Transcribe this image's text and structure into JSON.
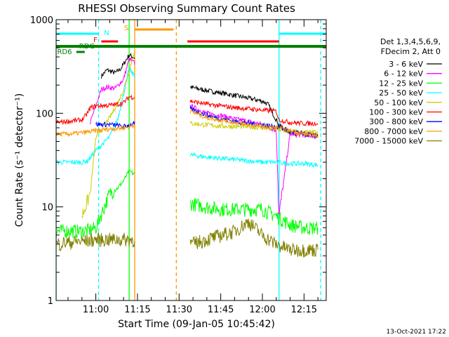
{
  "chart_data": {
    "type": "line",
    "title": "RHESSI Observing Summary Count Rates",
    "xlabel": "Start Time (09-Jan-05 10:45:42)",
    "ylabel": "Count Rate (s⁻¹ detector⁻¹)",
    "y_scale": "log",
    "ylim": [
      1,
      1000
    ],
    "xlim": [
      "10:45:42",
      "12:23:00"
    ],
    "x_ticks": [
      "11:00",
      "11:15",
      "11:30",
      "11:45",
      "12:00",
      "12:15"
    ],
    "y_ticks": [
      "1",
      "10",
      "100",
      "1000"
    ],
    "legend_position": "right",
    "legend_header": [
      "Det 1,3,4,5,6,9,",
      "FDecim 2, Att 0"
    ],
    "data_gap": [
      "11:14",
      "11:34"
    ],
    "series": [
      {
        "name": "3 - 6 keV",
        "color": "#000000",
        "x": [
          "11:02",
          "11:04",
          "11:07",
          "11:09",
          "11:12",
          "11:34",
          "11:40",
          "11:45",
          "11:50",
          "11:55",
          "12:00",
          "12:02",
          "12:06",
          "12:10",
          "12:15",
          "12:20"
        ],
        "y": [
          250,
          290,
          270,
          300,
          420,
          190,
          175,
          165,
          155,
          145,
          135,
          125,
          75,
          62,
          60,
          57
        ]
      },
      {
        "name": "6 - 12 keV",
        "color": "#ff00ff",
        "x": [
          "10:58",
          "11:02",
          "11:04",
          "11:07",
          "11:10",
          "11:12",
          "11:34",
          "11:40",
          "11:45",
          "11:50",
          "11:55",
          "12:00",
          "12:05",
          "12:06",
          "12:10",
          "12:15",
          "12:20"
        ],
        "y": [
          80,
          180,
          190,
          185,
          230,
          380,
          120,
          100,
          95,
          87,
          82,
          76,
          65,
          8,
          60,
          58,
          57
        ]
      },
      {
        "name": "12 - 25 keV",
        "color": "#00ff00",
        "x": [
          "10:45:42",
          "10:50",
          "10:55",
          "10:58",
          "11:00",
          "11:05",
          "11:08",
          "11:10",
          "11:12",
          "11:34",
          "11:40",
          "11:45",
          "11:50",
          "11:55",
          "12:00",
          "12:05",
          "12:10",
          "12:15",
          "12:20"
        ],
        "y": [
          5.5,
          5.6,
          5.5,
          5.7,
          6,
          14,
          16,
          19,
          24,
          11,
          10,
          9.5,
          9.5,
          9.5,
          9.5,
          8,
          6.5,
          6,
          6
        ]
      },
      {
        "name": "25 - 50 keV",
        "color": "#00ffff",
        "x": [
          "10:45:42",
          "10:50",
          "10:55",
          "10:57",
          "11:00",
          "11:05",
          "11:08",
          "11:10",
          "11:12",
          "11:34",
          "11:40",
          "11:45",
          "11:50",
          "11:55",
          "12:00",
          "12:05",
          "12:10",
          "12:15",
          "12:20"
        ],
        "y": [
          30,
          30,
          30,
          31,
          40,
          56,
          90,
          160,
          300,
          36,
          34,
          33,
          32,
          31,
          30,
          30,
          29,
          29,
          28
        ]
      },
      {
        "name": "50 - 100 keV",
        "color": "#cccc00",
        "x": [
          "10:55",
          "10:58",
          "11:00",
          "11:05",
          "11:08",
          "11:10",
          "11:12",
          "11:14",
          "11:34",
          "11:40",
          "11:45",
          "11:50",
          "11:55",
          "12:00",
          "12:05",
          "12:10",
          "12:15",
          "12:20"
        ],
        "y": [
          8,
          14,
          55,
          90,
          130,
          180,
          280,
          480,
          78,
          75,
          73,
          72,
          72,
          70,
          68,
          64,
          63,
          62
        ]
      },
      {
        "name": "100 - 300 keV",
        "color": "#ff0000",
        "x": [
          "10:45:42",
          "10:50",
          "10:55",
          "10:57",
          "10:58",
          "11:00",
          "11:05",
          "11:08",
          "11:10",
          "11:12",
          "11:34",
          "11:40",
          "11:45",
          "11:50",
          "11:55",
          "12:00",
          "12:05",
          "12:06",
          "12:10",
          "12:15",
          "12:20"
        ],
        "y": [
          80,
          82,
          85,
          100,
          115,
          120,
          122,
          125,
          130,
          150,
          135,
          125,
          120,
          115,
          112,
          108,
          105,
          85,
          80,
          78,
          78
        ]
      },
      {
        "name": "300 - 800 keV",
        "color": "#0000ff",
        "x": [
          "11:00",
          "11:05",
          "11:08",
          "11:10",
          "11:34",
          "11:40",
          "11:45",
          "11:50",
          "11:55",
          "12:00",
          "12:05",
          "12:10",
          "12:15",
          "12:20"
        ],
        "y": [
          76,
          76,
          74,
          72,
          112,
          95,
          88,
          82,
          78,
          75,
          72,
          64,
          60,
          56
        ]
      },
      {
        "name": "800 - 7000 keV",
        "color": "#ff9900",
        "x": [
          "10:45:42",
          "10:50",
          "10:55",
          "11:00",
          "11:05",
          "11:10",
          "11:12",
          "11:34",
          "11:40",
          "11:45",
          "11:50",
          "11:55",
          "12:00",
          "12:05",
          "12:10",
          "12:15",
          "12:20"
        ],
        "y": [
          60,
          60,
          62,
          65,
          68,
          70,
          72,
          105,
          90,
          85,
          80,
          75,
          72,
          70,
          65,
          60,
          58
        ]
      },
      {
        "name": "7000 - 15000 keV",
        "color": "#808000",
        "x": [
          "10:45:42",
          "10:50",
          "10:55",
          "11:00",
          "11:05",
          "11:10",
          "11:12",
          "11:34",
          "11:40",
          "11:45",
          "11:50",
          "11:55",
          "12:00",
          "12:05",
          "12:10",
          "12:15",
          "12:20"
        ],
        "y": [
          4,
          4.2,
          4.3,
          4.5,
          4.5,
          4.5,
          4.5,
          4,
          4.5,
          5,
          5.5,
          7,
          5,
          4,
          3.5,
          3.5,
          3.5
        ]
      }
    ],
    "flag_bars": [
      {
        "label": "N",
        "color": "#00ffff",
        "intervals": [
          [
            "10:45:42",
            "11:01"
          ],
          [
            "12:06",
            "12:23"
          ]
        ]
      },
      {
        "label": "F",
        "color": "#ff0000",
        "intervals": [
          [
            "11:02",
            "11:08"
          ],
          [
            "11:33",
            "12:06"
          ]
        ]
      },
      {
        "label": "S",
        "color": "#ff9900",
        "intervals": [
          [
            "11:14",
            "11:28"
          ]
        ]
      },
      {
        "label": "RD6",
        "color": "#008000",
        "intervals": [
          [
            "10:53",
            "10:56"
          ]
        ]
      },
      {
        "label": "RDG",
        "color": "#008000",
        "intervals": [
          [
            "10:45:42",
            "12:23"
          ]
        ]
      }
    ],
    "vertical_markers": [
      {
        "x": "10:45:42",
        "color": "#00ffff",
        "style": "solid"
      },
      {
        "x": "11:01",
        "color": "#00ffff",
        "style": "dashed"
      },
      {
        "x": "11:12",
        "color": "#00ff00",
        "style": "solid"
      },
      {
        "x": "11:14",
        "color": "#ff9900",
        "style": "solid"
      },
      {
        "x": "11:29",
        "color": "#ff9900",
        "style": "dashed"
      },
      {
        "x": "12:06",
        "color": "#00ffff",
        "style": "solid"
      },
      {
        "x": "12:21",
        "color": "#00ffff",
        "style": "dashed"
      }
    ]
  },
  "footer": {
    "timestamp": "13-Oct-2021 17:22"
  }
}
